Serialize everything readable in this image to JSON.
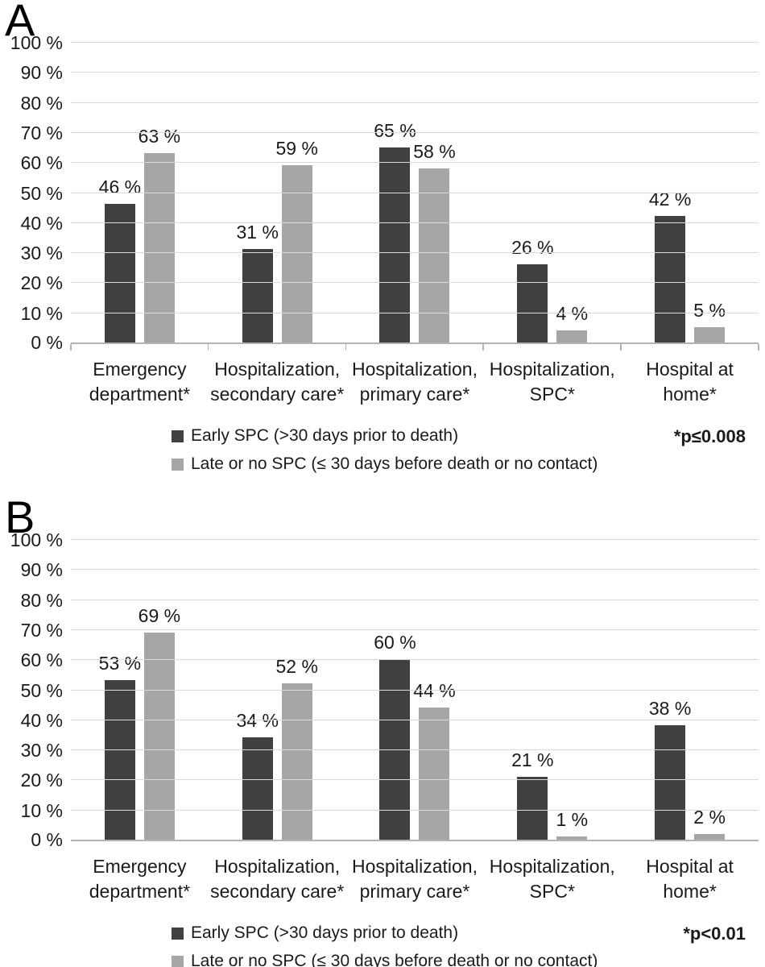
{
  "style": {
    "grid_color": "#d9d9d9",
    "axis_color": "#b3b3b3",
    "text_color": "#1a1a1a",
    "background": "#ffffff"
  },
  "chart_data": [
    {
      "panel": "A",
      "type": "bar",
      "y_axis": {
        "ticks": [
          100,
          90,
          80,
          70,
          60,
          50,
          40,
          30,
          20,
          10,
          0
        ],
        "label_suffix": " %",
        "ylim": [
          0,
          100
        ],
        "grid": true
      },
      "categories": [
        [
          "Emergency",
          "department*"
        ],
        [
          "Hospitalization,",
          "secondary care*"
        ],
        [
          "Hospitalization,",
          "primary care*"
        ],
        [
          "Hospitalization,",
          "SPC*"
        ],
        [
          "Hospital at",
          "home*"
        ]
      ],
      "series": [
        {
          "name": "Early SPC (>30 days prior to death)",
          "color": "#404040",
          "values": [
            46,
            31,
            65,
            26,
            42
          ],
          "labels": [
            "46 %",
            "31 %",
            "65 %",
            "26 %",
            "42 %"
          ]
        },
        {
          "name": "Late or no SPC (≤ 30 days before death or no contact)",
          "color": "#a6a6a6",
          "values": [
            63,
            59,
            58,
            4,
            5
          ],
          "labels": [
            "63 %",
            "59 %",
            "58 %",
            "4 %",
            "5 %"
          ]
        }
      ],
      "p_value": "*p≤0.008",
      "axis_ticks_bottom": true,
      "legend_position": "bottom-left"
    },
    {
      "panel": "B",
      "type": "bar",
      "y_axis": {
        "ticks": [
          100,
          90,
          80,
          70,
          60,
          50,
          40,
          30,
          20,
          10,
          0
        ],
        "label_suffix": " %",
        "ylim": [
          0,
          100
        ],
        "grid": true
      },
      "categories": [
        [
          "Emergency",
          "department*"
        ],
        [
          "Hospitalization,",
          "secondary care*"
        ],
        [
          "Hospitalization,",
          "primary care*"
        ],
        [
          "Hospitalization,",
          "SPC*"
        ],
        [
          "Hospital at",
          "home*"
        ]
      ],
      "series": [
        {
          "name": "Early SPC (>30 days prior to death)",
          "color": "#404040",
          "values": [
            53,
            34,
            60,
            21,
            38
          ],
          "labels": [
            "53 %",
            "34 %",
            "60 %",
            "21 %",
            "38 %"
          ]
        },
        {
          "name": "Late or no SPC (≤ 30 days before death or no contact)",
          "color": "#a6a6a6",
          "values": [
            69,
            52,
            44,
            1,
            2
          ],
          "labels": [
            "69 %",
            "52 %",
            "44 %",
            "1 %",
            "2 %"
          ]
        }
      ],
      "p_value": "*p<0.01",
      "axis_ticks_bottom": false,
      "legend_position": "bottom-left"
    }
  ]
}
